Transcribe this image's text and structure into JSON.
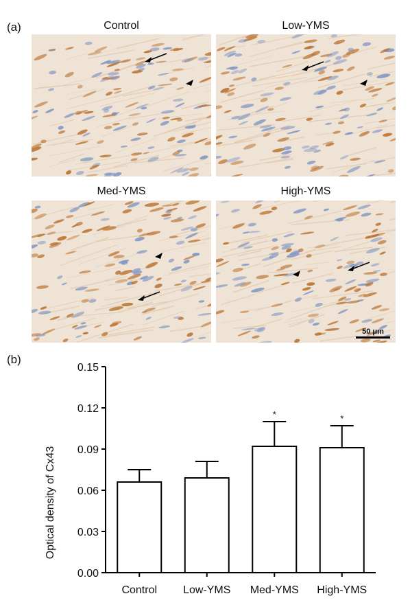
{
  "panel_a": {
    "label": "(a)",
    "images": [
      {
        "title": "Control"
      },
      {
        "title": "Low-YMS"
      },
      {
        "title": "Med-YMS"
      },
      {
        "title": "High-YMS"
      }
    ],
    "scale_bar": "50 μm",
    "colors": {
      "tissue": "#efe3d6",
      "stain": "#b9712e",
      "nuclei": "#7f95c2"
    }
  },
  "panel_b": {
    "label": "(b)"
  },
  "chart_data": {
    "type": "bar",
    "categories": [
      "Control",
      "Low-YMS",
      "Med-YMS",
      "High-YMS"
    ],
    "values": [
      0.066,
      0.069,
      0.092,
      0.091
    ],
    "error_upper": [
      0.075,
      0.081,
      0.11,
      0.107
    ],
    "significance": [
      "",
      "",
      "*",
      "*"
    ],
    "ylabel": "Optical density of Cx43",
    "xlabel": "",
    "ylim": [
      0,
      0.15
    ],
    "yticks": [
      "0.00",
      "0.03",
      "0.06",
      "0.09",
      "0.12",
      "0.15"
    ],
    "bar_color": "#ffffff",
    "edge_color": "#000000",
    "grid": false
  }
}
